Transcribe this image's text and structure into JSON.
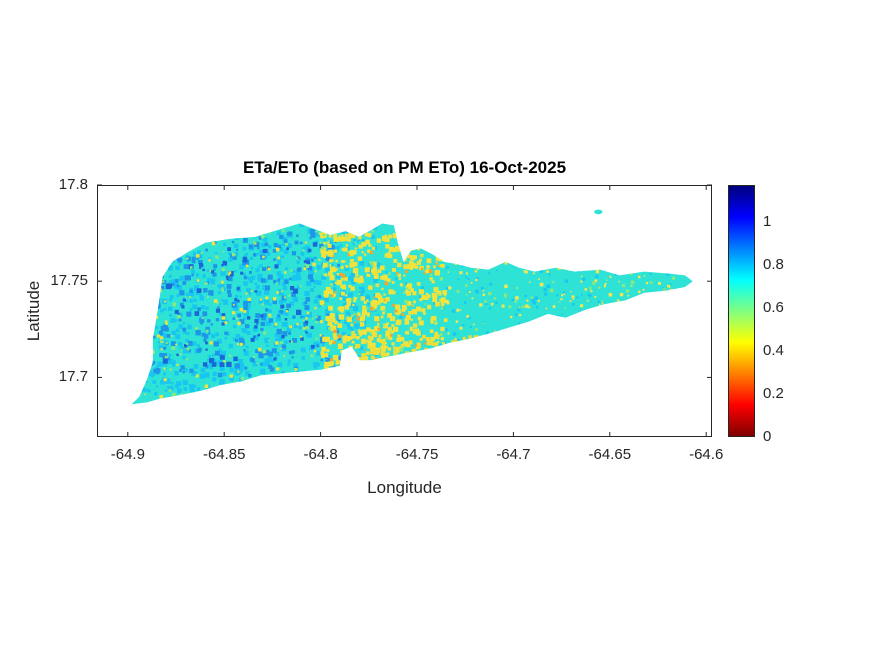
{
  "figure": {
    "title": "ETa/ETo (based on PM ETo) 16-Oct-2025",
    "xlabel": "Longitude",
    "ylabel": "Latitude",
    "background_color": "#ffffff"
  },
  "chart_data": {
    "type": "heatmap",
    "title": "ETa/ETo (based on PM ETo) 16-Oct-2025",
    "xlabel": "Longitude",
    "ylabel": "Latitude",
    "xlim": [
      -64.916,
      -64.597
    ],
    "ylim": [
      17.669,
      17.8
    ],
    "xticks": [
      -64.9,
      -64.85,
      -64.8,
      -64.75,
      -64.7,
      -64.65,
      -64.6
    ],
    "xtick_labels": [
      "-64.9",
      "-64.85",
      "-64.8",
      "-64.75",
      "-64.7",
      "-64.65",
      "-64.6"
    ],
    "yticks": [
      17.7,
      17.75,
      17.8
    ],
    "ytick_labels": [
      "17.7",
      "17.75",
      "17.8"
    ],
    "grid": false,
    "legend": "none",
    "colorbar": {
      "min": 0,
      "max": 1.17,
      "ticks": [
        0,
        0.2,
        0.4,
        0.6,
        0.8,
        1
      ],
      "tick_labels": [
        "0",
        "0.2",
        "0.4",
        "0.6",
        "0.8",
        "1"
      ],
      "colormap": "jet reversed (0 = dark red at bottom, max = dark blue at top)",
      "gradient_stops": [
        {
          "pos": 0.0,
          "color": "#800000"
        },
        {
          "pos": 0.125,
          "color": "#ff0000"
        },
        {
          "pos": 0.25,
          "color": "#ff8000"
        },
        {
          "pos": 0.375,
          "color": "#ffff00"
        },
        {
          "pos": 0.5,
          "color": "#80ff80"
        },
        {
          "pos": 0.625,
          "color": "#00ffff"
        },
        {
          "pos": 0.75,
          "color": "#0080ff"
        },
        {
          "pos": 0.875,
          "color": "#0000ff"
        },
        {
          "pos": 1.0,
          "color": "#000080"
        }
      ]
    },
    "values_summary": {
      "dominant_ratio_range": [
        0.6,
        0.8
      ],
      "high_patch_ratio": 0.85,
      "low_patch_ratio": 0.45,
      "base_color": "#2ee3d6"
    },
    "island_outline": [
      [
        -64.898,
        17.686
      ],
      [
        -64.894,
        17.69
      ],
      [
        -64.89,
        17.699
      ],
      [
        -64.887,
        17.708
      ],
      [
        -64.887,
        17.72
      ],
      [
        -64.884,
        17.738
      ],
      [
        -64.882,
        17.752
      ],
      [
        -64.877,
        17.76
      ],
      [
        -64.869,
        17.765
      ],
      [
        -64.86,
        17.77
      ],
      [
        -64.847,
        17.772
      ],
      [
        -64.834,
        17.773
      ],
      [
        -64.821,
        17.777
      ],
      [
        -64.811,
        17.78
      ],
      [
        -64.803,
        17.777
      ],
      [
        -64.795,
        17.774
      ],
      [
        -64.787,
        17.776
      ],
      [
        -64.78,
        17.773
      ],
      [
        -64.773,
        17.777
      ],
      [
        -64.768,
        17.78
      ],
      [
        -64.762,
        17.779
      ],
      [
        -64.76,
        17.77
      ],
      [
        -64.757,
        17.76
      ],
      [
        -64.753,
        17.766
      ],
      [
        -64.748,
        17.767
      ],
      [
        -64.742,
        17.764
      ],
      [
        -64.736,
        17.76
      ],
      [
        -64.73,
        17.759
      ],
      [
        -64.722,
        17.757
      ],
      [
        -64.713,
        17.756
      ],
      [
        -64.704,
        17.76
      ],
      [
        -64.697,
        17.757
      ],
      [
        -64.689,
        17.755
      ],
      [
        -64.678,
        17.757
      ],
      [
        -64.668,
        17.755
      ],
      [
        -64.655,
        17.756
      ],
      [
        -64.645,
        17.753
      ],
      [
        -64.632,
        17.755
      ],
      [
        -64.62,
        17.754
      ],
      [
        -64.611,
        17.753
      ],
      [
        -64.607,
        17.75
      ],
      [
        -64.611,
        17.747
      ],
      [
        -64.621,
        17.745
      ],
      [
        -64.632,
        17.744
      ],
      [
        -64.642,
        17.74
      ],
      [
        -64.653,
        17.738
      ],
      [
        -64.663,
        17.735
      ],
      [
        -64.673,
        17.731
      ],
      [
        -64.682,
        17.733
      ],
      [
        -64.692,
        17.729
      ],
      [
        -64.702,
        17.726
      ],
      [
        -64.712,
        17.723
      ],
      [
        -64.723,
        17.72
      ],
      [
        -64.733,
        17.718
      ],
      [
        -64.743,
        17.715
      ],
      [
        -64.754,
        17.713
      ],
      [
        -64.764,
        17.711
      ],
      [
        -64.774,
        17.709
      ],
      [
        -64.782,
        17.709
      ],
      [
        -64.79,
        17.706
      ],
      [
        -64.8,
        17.704
      ],
      [
        -64.811,
        17.703
      ],
      [
        -64.821,
        17.702
      ],
      [
        -64.831,
        17.701
      ],
      [
        -64.841,
        17.698
      ],
      [
        -64.852,
        17.696
      ],
      [
        -64.862,
        17.693
      ],
      [
        -64.872,
        17.691
      ],
      [
        -64.883,
        17.689
      ],
      [
        -64.89,
        17.687
      ]
    ],
    "lagoon_hole": [
      [
        -64.789,
        17.714
      ],
      [
        -64.784,
        17.716
      ],
      [
        -64.78,
        17.71
      ],
      [
        -64.781,
        17.702
      ],
      [
        -64.786,
        17.699
      ],
      [
        -64.79,
        17.706
      ]
    ],
    "offshore_islet": {
      "lon": -64.656,
      "lat": 17.786,
      "rx_deg": 0.0022,
      "ry_deg": 0.0012,
      "color": "#2ee3d6"
    },
    "speckle_groups": [
      {
        "name": "blue-light-west",
        "color": "#18c6f0",
        "count": 700,
        "size": 3,
        "lon_range": [
          -64.9,
          -64.77
        ],
        "lat_range": [
          17.69,
          17.78
        ]
      },
      {
        "name": "blue-medium-west",
        "color": "#1e96e8",
        "count": 260,
        "size": 3,
        "lon_range": [
          -64.893,
          -64.79
        ],
        "lat_range": [
          17.7,
          17.776
        ]
      },
      {
        "name": "blue-deep-west",
        "color": "#1b66d6",
        "count": 70,
        "size": 3,
        "lon_range": [
          -64.885,
          -64.8
        ],
        "lat_range": [
          17.705,
          17.77
        ]
      },
      {
        "name": "blue-scatter-east",
        "color": "#18c6f0",
        "count": 160,
        "size": 2,
        "lon_range": [
          -64.77,
          -64.61
        ],
        "lat_range": [
          17.705,
          17.76
        ]
      },
      {
        "name": "yellow-central",
        "color": "#f2e33c",
        "count": 480,
        "size": 3,
        "lon_range": [
          -64.8,
          -64.735
        ],
        "lat_range": [
          17.705,
          17.775
        ]
      },
      {
        "name": "yellow-south-coast",
        "color": "#eede38",
        "count": 130,
        "size": 3,
        "lon_range": [
          -64.785,
          -64.7
        ],
        "lat_range": [
          17.7,
          17.722
        ]
      },
      {
        "name": "yellow-scatter-east",
        "color": "#f4e650",
        "count": 240,
        "size": 2,
        "lon_range": [
          -64.735,
          -64.6
        ],
        "lat_range": [
          17.7,
          17.76
        ]
      },
      {
        "name": "yellow-scatter-west",
        "color": "#f2e33c",
        "count": 110,
        "size": 2,
        "lon_range": [
          -64.9,
          -64.8
        ],
        "lat_range": [
          17.688,
          17.775
        ]
      },
      {
        "name": "green-scatter",
        "color": "#8ae87c",
        "count": 260,
        "size": 2,
        "lon_range": [
          -64.9,
          -64.605
        ],
        "lat_range": [
          17.688,
          17.778
        ]
      },
      {
        "name": "orange-central",
        "color": "#f7a428",
        "count": 45,
        "size": 2,
        "lon_range": [
          -64.795,
          -64.738
        ],
        "lat_range": [
          17.705,
          17.77
        ]
      }
    ],
    "random_seed": 42
  }
}
